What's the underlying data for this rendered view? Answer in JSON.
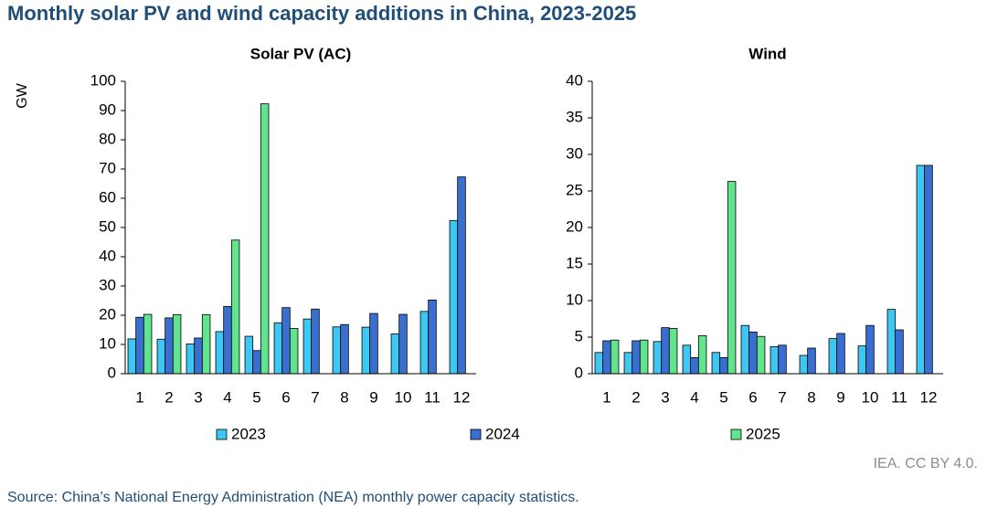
{
  "title": "Monthly solar PV and wind capacity additions in China, 2023-2025",
  "credit": "IEA. CC BY 4.0.",
  "source": "Source: China’s National Energy Administration (NEA) monthly power capacity statistics.",
  "chart_data": [
    {
      "type": "bar",
      "title": "Solar PV (AC)",
      "y_label": "GW",
      "categories": [
        "1",
        "2",
        "3",
        "4",
        "5",
        "6",
        "7",
        "8",
        "9",
        "10",
        "11",
        "12"
      ],
      "series": [
        {
          "name": "2023",
          "color": "#3cc8f2",
          "values": [
            11.9,
            11.8,
            10.2,
            14.4,
            12.8,
            17.4,
            18.7,
            16.0,
            15.9,
            13.6,
            21.3,
            52.4
          ]
        },
        {
          "name": "2024",
          "color": "#3a6fd2",
          "values": [
            19.3,
            19.1,
            12.2,
            23.0,
            7.9,
            22.6,
            22.1,
            16.8,
            20.6,
            20.3,
            25.2,
            67.3
          ]
        },
        {
          "name": "2025",
          "color": "#62e48e",
          "values": [
            20.3,
            20.2,
            20.2,
            45.7,
            92.3,
            15.5,
            null,
            null,
            null,
            null,
            null,
            null
          ]
        }
      ],
      "ylim": [
        0,
        100
      ],
      "yticks": [
        0,
        10,
        20,
        30,
        40,
        50,
        60,
        70,
        80,
        90,
        100
      ],
      "grid": false
    },
    {
      "type": "bar",
      "title": "Wind",
      "categories": [
        "1",
        "2",
        "3",
        "4",
        "5",
        "6",
        "7",
        "8",
        "9",
        "10",
        "11",
        "12"
      ],
      "series": [
        {
          "name": "2023",
          "color": "#3cc8f2",
          "values": [
            2.9,
            2.9,
            4.4,
            3.9,
            2.9,
            6.6,
            3.7,
            2.5,
            4.8,
            3.8,
            8.8,
            28.5
          ]
        },
        {
          "name": "2024",
          "color": "#3a6fd2",
          "values": [
            4.5,
            4.5,
            6.3,
            2.2,
            2.2,
            5.7,
            3.9,
            3.5,
            5.5,
            6.6,
            6.0,
            28.5
          ]
        },
        {
          "name": "2025",
          "color": "#62e48e",
          "values": [
            4.6,
            4.6,
            6.2,
            5.2,
            26.3,
            5.1,
            null,
            null,
            null,
            null,
            null,
            null
          ]
        }
      ],
      "ylim": [
        0,
        40
      ],
      "yticks": [
        0,
        5,
        10,
        15,
        20,
        25,
        30,
        35,
        40
      ],
      "grid": false
    }
  ]
}
